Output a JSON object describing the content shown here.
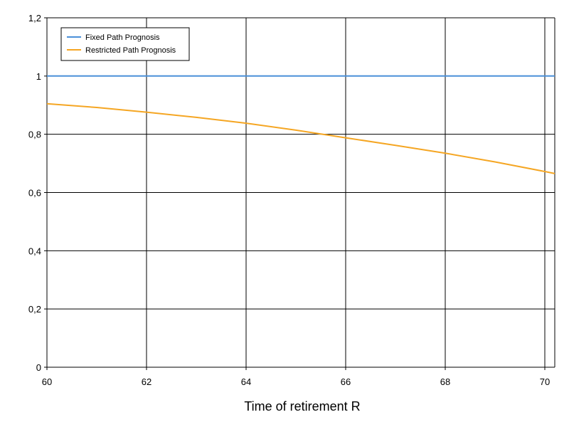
{
  "chart_data": {
    "type": "line",
    "title": "",
    "xlabel": "Time of retirement R",
    "ylabel": "",
    "xlim": [
      60,
      70.2
    ],
    "ylim": [
      0,
      1.2
    ],
    "x_ticks": [
      60,
      62,
      64,
      66,
      68,
      70
    ],
    "x_tick_labels": [
      "60",
      "62",
      "64",
      "66",
      "68",
      "70"
    ],
    "y_ticks": [
      0,
      0.2,
      0.4,
      0.6,
      0.8,
      1.0,
      1.2
    ],
    "y_tick_labels": [
      "0",
      "0,2",
      "0,4",
      "0,6",
      "0,8",
      "1",
      "1,2"
    ],
    "grid": true,
    "legend_position": "top-left",
    "series": [
      {
        "name": "Fixed Path Prognosis",
        "color": "#4a90d9",
        "x": [
          60,
          61,
          62,
          63,
          64,
          65,
          66,
          67,
          68,
          69,
          70,
          70.2
        ],
        "y": [
          1,
          1,
          1,
          1,
          1,
          1,
          1,
          1,
          1,
          1,
          1,
          1
        ]
      },
      {
        "name": "Restricted Path Prognosis",
        "color": "#f5a623",
        "x": [
          60,
          61,
          62,
          63,
          64,
          65,
          66,
          67,
          68,
          69,
          70,
          70.2
        ],
        "y": [
          0.905,
          0.892,
          0.876,
          0.858,
          0.838,
          0.814,
          0.788,
          0.762,
          0.735,
          0.705,
          0.672,
          0.665
        ]
      }
    ]
  }
}
